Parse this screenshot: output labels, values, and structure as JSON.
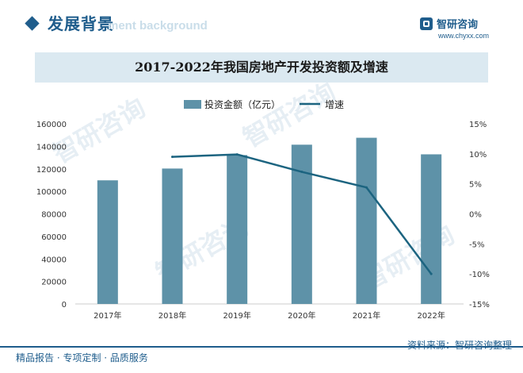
{
  "header": {
    "title": "发展背景",
    "subtitle_overlay": "ment background",
    "logo_name": "智研咨询",
    "logo_url": "www.chyxx.com"
  },
  "watermark": "智研咨询",
  "chart_data": {
    "type": "bar",
    "title": "2017-2022年我国房地产开发投资额及增速",
    "categories": [
      "2017年",
      "2018年",
      "2019年",
      "2020年",
      "2021年",
      "2022年"
    ],
    "series": [
      {
        "name": "投资金额（亿元）",
        "type": "bar",
        "axis": "left",
        "values": [
          109799,
          120264,
          132194,
          141443,
          147602,
          132895
        ]
      },
      {
        "name": "增速",
        "type": "line",
        "axis": "right",
        "unit": "%",
        "values": [
          null,
          9.5,
          9.9,
          7.0,
          4.4,
          -10.0
        ]
      }
    ],
    "ylim_left": [
      0,
      160000
    ],
    "yticks_left": [
      "0",
      "20000",
      "40000",
      "60000",
      "80000",
      "100000",
      "120000",
      "140000",
      "160000"
    ],
    "ylim_right": [
      -15,
      15
    ],
    "yticks_right": [
      "-15%",
      "-10%",
      "-5%",
      "0%",
      "5%",
      "10%",
      "15%"
    ],
    "grid": false,
    "legend_position": "top",
    "colors": {
      "bar": "#5e92a8",
      "line": "#1c6480"
    }
  },
  "footer": {
    "left": "精品报告 · 专项定制 · 品质服务",
    "right": "资料来源：智研咨询整理"
  }
}
